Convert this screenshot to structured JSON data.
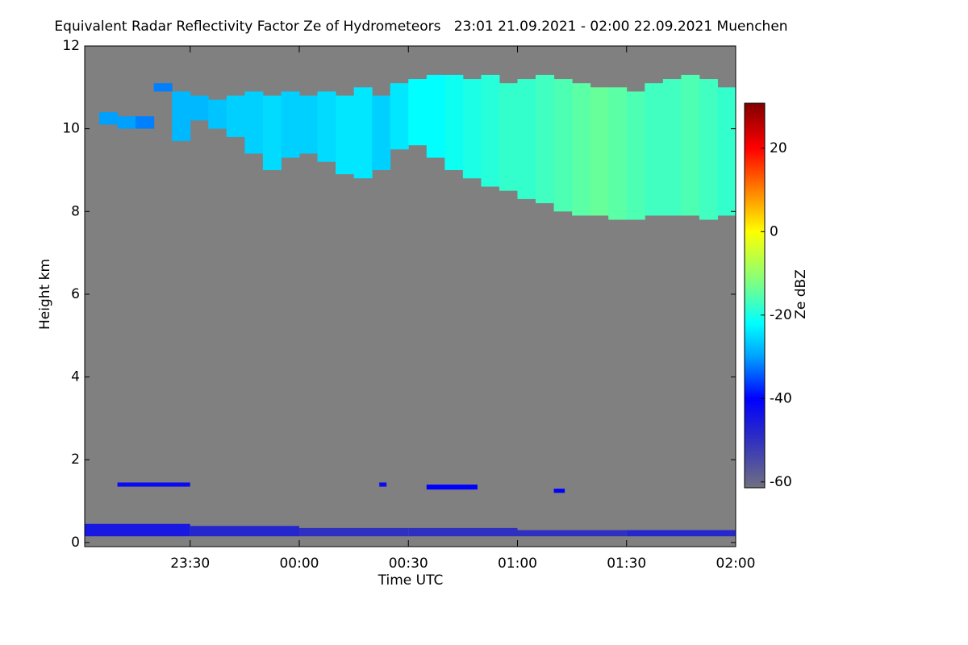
{
  "chart_data": {
    "type": "heatmap",
    "title": "Equivalent Radar Reflectivity Factor Ze of Hydrometeors   23:01 21.09.2021 - 02:00 22.09.2021 Muenchen",
    "x_label": "Time UTC",
    "y_label": "Height km",
    "colorbar_label": "Ze dBZ",
    "background": "#808080",
    "xlim": [
      "23:01",
      "02:00"
    ],
    "xticks": [
      "23:30",
      "00:00",
      "00:30",
      "01:00",
      "01:30",
      "02:00"
    ],
    "ylim": [
      -0.1,
      12
    ],
    "yticks": [
      0,
      2,
      4,
      6,
      8,
      10,
      12
    ],
    "zlim": [
      -61.4,
      30.8
    ],
    "zticks": [
      -60,
      -40,
      -20,
      0,
      20
    ],
    "colorscale": [
      [
        -61.4,
        "#707080"
      ],
      [
        -50,
        "#3030c0"
      ],
      [
        -40,
        "#0000ff"
      ],
      [
        -30,
        "#00a0ff"
      ],
      [
        -22,
        "#00ffff"
      ],
      [
        -12,
        "#80ff80"
      ],
      [
        0,
        "#ffff00"
      ],
      [
        10,
        "#ff8000"
      ],
      [
        20,
        "#ff0000"
      ],
      [
        30.8,
        "#800000"
      ]
    ],
    "cloud": {
      "x": [
        "23:05",
        "23:10",
        "23:15",
        "23:20",
        "23:25",
        "23:30",
        "23:35",
        "23:40",
        "23:45",
        "23:50",
        "23:55",
        "00:00",
        "00:05",
        "00:10",
        "00:15",
        "00:20",
        "00:25",
        "00:30",
        "00:35",
        "00:40",
        "00:45",
        "00:50",
        "00:55",
        "01:00",
        "01:05",
        "01:10",
        "01:15",
        "01:20",
        "01:25",
        "01:30",
        "01:35",
        "01:40",
        "01:45",
        "01:50",
        "01:55"
      ],
      "base": [
        10.1,
        10.0,
        10.0,
        10.9,
        9.7,
        10.2,
        10.0,
        9.8,
        9.4,
        9.0,
        9.3,
        9.4,
        9.2,
        8.9,
        8.8,
        9.0,
        9.5,
        9.6,
        9.3,
        9.0,
        8.8,
        8.6,
        8.5,
        8.3,
        8.2,
        8.0,
        7.9,
        7.9,
        7.8,
        7.8,
        7.9,
        7.9,
        7.9,
        7.8,
        7.9
      ],
      "top": [
        10.4,
        10.3,
        10.3,
        11.1,
        10.9,
        10.8,
        10.7,
        10.8,
        10.9,
        10.8,
        10.9,
        10.8,
        10.9,
        10.8,
        11.0,
        10.8,
        11.1,
        11.2,
        11.3,
        11.3,
        11.2,
        11.3,
        11.1,
        11.2,
        11.3,
        11.2,
        11.1,
        11.0,
        11.0,
        10.9,
        11.1,
        11.2,
        11.3,
        11.2,
        11.0
      ],
      "ze": [
        -30,
        -30,
        -32,
        -32,
        -28,
        -28,
        -27,
        -26,
        -26,
        -25,
        -26,
        -26,
        -25,
        -24,
        -24,
        -26,
        -24,
        -22,
        -22,
        -21,
        -20,
        -19,
        -18,
        -18,
        -17,
        -16,
        -15,
        -14,
        -15,
        -16,
        -17,
        -17,
        -16,
        -17,
        -18
      ]
    },
    "low_echo": {
      "x": [
        "23:01",
        "23:30",
        "00:00",
        "00:30",
        "01:00",
        "01:30",
        "23:10",
        "00:22",
        "00:35",
        "01:10"
      ],
      "x_end": [
        "23:30",
        "00:00",
        "00:30",
        "01:00",
        "01:30",
        "02:00",
        "23:30",
        "00:24",
        "00:49",
        "01:13"
      ],
      "base": [
        0.15,
        0.15,
        0.15,
        0.15,
        0.15,
        0.15,
        1.35,
        1.35,
        1.28,
        1.2
      ],
      "top": [
        0.45,
        0.4,
        0.35,
        0.35,
        0.3,
        0.3,
        1.45,
        1.45,
        1.4,
        1.3
      ],
      "ze": [
        -45,
        -48,
        -50,
        -50,
        -50,
        -48,
        -42,
        -42,
        -40,
        -40
      ]
    }
  }
}
